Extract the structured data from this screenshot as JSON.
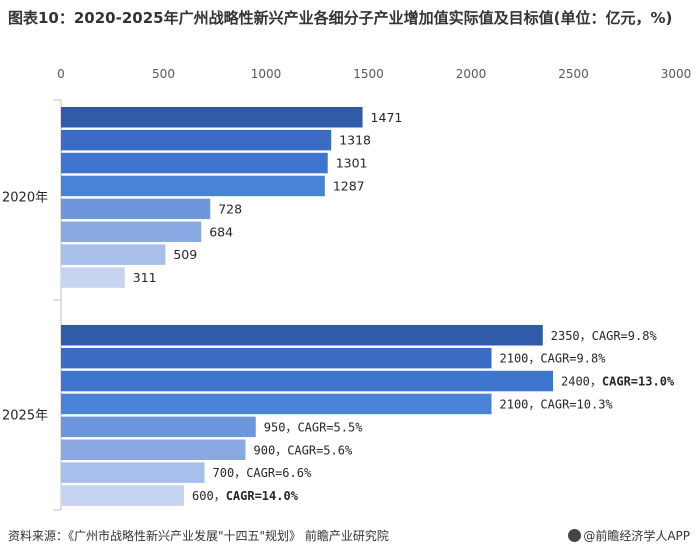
{
  "title": "图表10：2020-2025年广州战略性新兴产业各细分子产业增加值实际值及目标值(单位：亿元，%)",
  "footer": {
    "source": "资料来源：《广州市战略性新兴产业发展\"十四五\"规划》 前瞻产业研究院",
    "brand": "@前瞻经济学人APP"
  },
  "colors": {
    "axis": "#bfbfbf",
    "bars": [
      "#2f5ba8",
      "#3a6cc4",
      "#3e75cf",
      "#4a82d6",
      "#6e96dc",
      "#8aa9e2",
      "#a7bfea",
      "#c6d4f1"
    ],
    "highlight": "#3b78d8"
  },
  "chart_data": {
    "type": "bar",
    "orientation": "horizontal",
    "title": "图表10：2020-2025年广州战略性新兴产业各细分子产业增加值实际值及目标值(单位：亿元，%)",
    "xlim": [
      0,
      3000
    ],
    "xticks": [
      "0",
      "500",
      "1000",
      "1500",
      "2000",
      "2500",
      "3000"
    ],
    "categories": [
      "2020年",
      "2025年"
    ],
    "series_count": 8,
    "values": {
      "2020年": [
        1471,
        1318,
        1301,
        1287,
        728,
        684,
        509,
        311
      ],
      "2025年": [
        2350,
        2100,
        2400,
        2100,
        950,
        900,
        700,
        600
      ]
    },
    "labels": {
      "2020年": [
        "1471",
        "1318",
        "1301",
        "1287",
        "728",
        "684",
        "509",
        "311"
      ],
      "2025年": [
        {
          "value": "2350，",
          "cagr": "CAGR=9.8%",
          "bold": false
        },
        {
          "value": "2100，",
          "cagr": "CAGR=9.8%",
          "bold": false
        },
        {
          "value": "2400，",
          "cagr": "CAGR=13.0%",
          "bold": true
        },
        {
          "value": "2100，",
          "cagr": "CAGR=10.3%",
          "bold": false
        },
        {
          "value": "950，",
          "cagr": "CAGR=5.5%",
          "bold": false
        },
        {
          "value": "900，",
          "cagr": "CAGR=5.6%",
          "bold": false
        },
        {
          "value": "700，",
          "cagr": "CAGR=6.6%",
          "bold": false
        },
        {
          "value": "600，",
          "cagr": "CAGR=14.0%",
          "bold": true
        }
      ]
    }
  }
}
